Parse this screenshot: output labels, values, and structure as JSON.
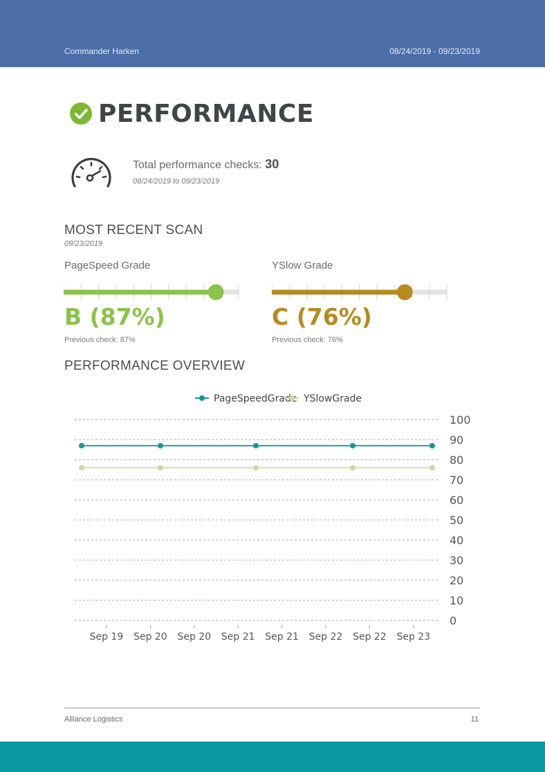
{
  "header": {
    "name": "Commander Harken",
    "date_range": "08/24/2019 - 09/23/2019"
  },
  "title": {
    "text": "PERFORMANCE",
    "icon": "check-circle-icon",
    "color": "#7cb832"
  },
  "summary": {
    "icon": "speedometer-icon",
    "checks_label": "Total performance checks:",
    "checks_value": "30",
    "range": "08/24/2019 to 09/23/2019"
  },
  "recent_scan": {
    "title": "MOST RECENT SCAN",
    "date": "09/23/2019",
    "pagespeed": {
      "label": "PageSpeed Grade",
      "grade": "B (87%)",
      "value": 87,
      "previous": "Previous check: 87%",
      "color": "#8bc34a"
    },
    "yslow": {
      "label": "YSlow Grade",
      "grade": "C (76%)",
      "value": 76,
      "previous": "Previous check: 76%",
      "color": "#b78a1f"
    }
  },
  "overview": {
    "title": "PERFORMANCE OVERVIEW"
  },
  "chart_data": {
    "type": "line",
    "x": [
      "Sep 19",
      "Sep 20",
      "Sep 20",
      "Sep 21",
      "Sep 21",
      "Sep 22",
      "Sep 22",
      "Sep 23"
    ],
    "yticks": [
      0,
      10,
      20,
      30,
      40,
      50,
      60,
      70,
      80,
      90,
      100
    ],
    "ylim": [
      0,
      100
    ],
    "series": [
      {
        "name": "PageSpeedGrade",
        "color": "#14979c",
        "points": [
          87,
          87,
          87,
          87,
          87
        ]
      },
      {
        "name": "YSlowGrade",
        "color": "#c5dc9a",
        "points": [
          76,
          76,
          76,
          76,
          76
        ]
      }
    ],
    "grid": true,
    "legend": "top-center",
    "y_axis_side": "right"
  },
  "footer": {
    "company": "Alliance Logistics",
    "page": "11"
  }
}
